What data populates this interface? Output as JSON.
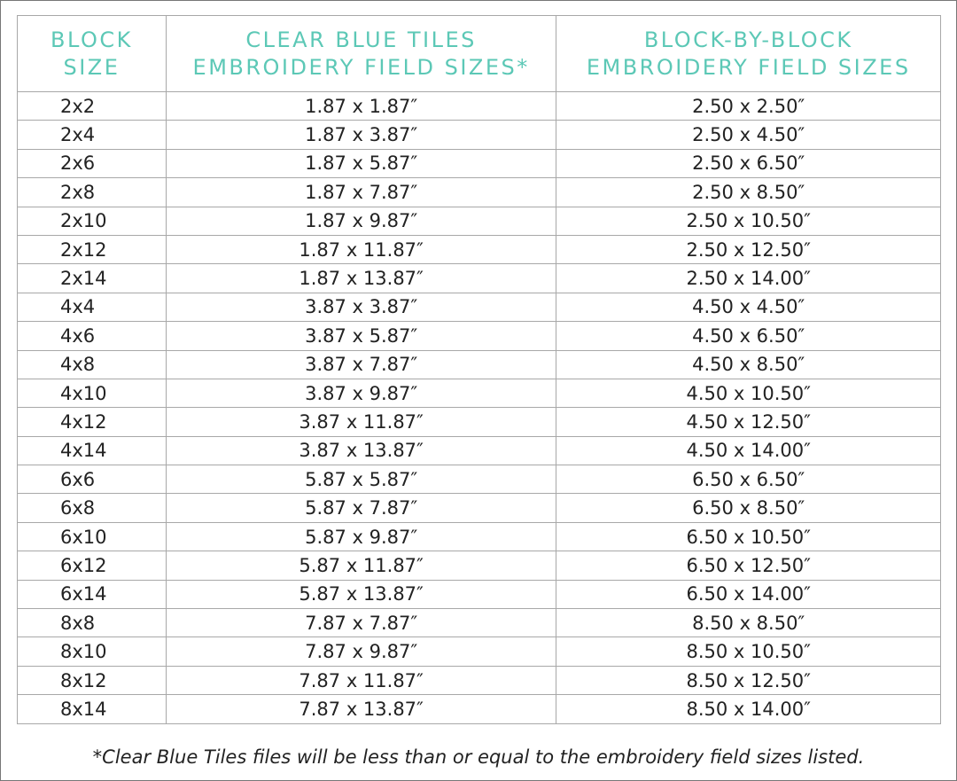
{
  "headers": [
    {
      "line1": "BLOCK",
      "line2": "SIZE"
    },
    {
      "line1": "CLEAR BLUE TILES",
      "line2": "EMBROIDERY FIELD SIZES*"
    },
    {
      "line1": "BLOCK-BY-BLOCK",
      "line2": "EMBROIDERY FIELD SIZES"
    }
  ],
  "rows": [
    [
      "2x2",
      "1.87 x 1.87″",
      "2.50 x 2.50″"
    ],
    [
      "2x4",
      "1.87 x 3.87″",
      "2.50 x 4.50″"
    ],
    [
      "2x6",
      "1.87 x 5.87″",
      "2.50 x 6.50″"
    ],
    [
      "2x8",
      "1.87 x 7.87″",
      "2.50 x 8.50″"
    ],
    [
      "2x10",
      "1.87 x 9.87″",
      "2.50 x 10.50″"
    ],
    [
      "2x12",
      "1.87 x 11.87″",
      "2.50 x 12.50″"
    ],
    [
      "2x14",
      "1.87 x 13.87″",
      "2.50 x 14.00″"
    ],
    [
      "4x4",
      "3.87 x 3.87″",
      "4.50 x 4.50″"
    ],
    [
      "4x6",
      "3.87 x 5.87″",
      "4.50 x 6.50″"
    ],
    [
      "4x8",
      "3.87 x 7.87″",
      "4.50 x 8.50″"
    ],
    [
      "4x10",
      "3.87 x 9.87″",
      "4.50 x 10.50″"
    ],
    [
      "4x12",
      "3.87 x 11.87″",
      "4.50 x 12.50″"
    ],
    [
      "4x14",
      "3.87 x 13.87″",
      "4.50 x 14.00″"
    ],
    [
      "6x6",
      "5.87 x 5.87″",
      "6.50 x 6.50″"
    ],
    [
      "6x8",
      "5.87 x 7.87″",
      "6.50 x 8.50″"
    ],
    [
      "6x10",
      "5.87 x 9.87″",
      "6.50 x 10.50″"
    ],
    [
      "6x12",
      "5.87 x 11.87″",
      "6.50 x 12.50″"
    ],
    [
      "6x14",
      "5.87 x 13.87″",
      "6.50 x 14.00″"
    ],
    [
      "8x8",
      "7.87 x 7.87″",
      "8.50 x 8.50″"
    ],
    [
      "8x10",
      "7.87 x 9.87″",
      "8.50 x 10.50″"
    ],
    [
      "8x12",
      "7.87 x 11.87″",
      "8.50 x 12.50″"
    ],
    [
      "8x14",
      "7.87 x 13.87″",
      "8.50 x 14.00″"
    ]
  ],
  "footnote": "*Clear Blue Tiles files will be less than or equal to the embroidery field sizes listed.",
  "colors": {
    "header_text": "#5cc8b6",
    "grid": "#a8a8a8",
    "body_text": "#222222"
  }
}
